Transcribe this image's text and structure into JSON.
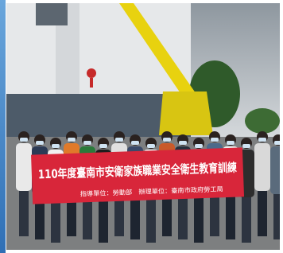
{
  "banner": {
    "title": "110年度臺南市安衛家族職業安全衛生教育訓練",
    "organizers": "指導單位：勞動部　辦理單位：臺南市政府勞工局"
  }
}
